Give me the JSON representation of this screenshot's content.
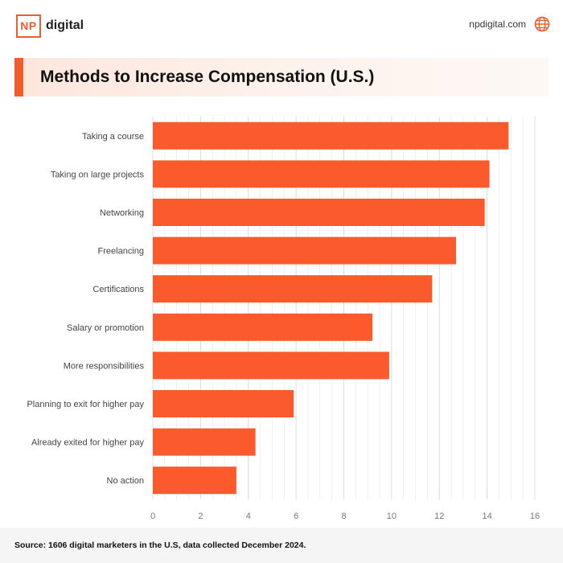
{
  "header": {
    "logo_mark": "NP",
    "logo_text": "digital",
    "site": "npdigital.com",
    "site_icon": "globe-icon"
  },
  "title": "Methods to Increase Compensation (U.S.)",
  "source": "Source: 1606 digital marketers in the U.S, data collected December 2024.",
  "colors": {
    "accent": "#f25c2a",
    "bar": "#fb5a2c",
    "grid": "#e6e6e6"
  },
  "chart_data": {
    "type": "bar",
    "orientation": "horizontal",
    "title": "Methods to Increase Compensation (U.S.)",
    "xlabel": "",
    "ylabel": "",
    "xlim": [
      0,
      16
    ],
    "x_ticks": [
      0,
      2,
      4,
      6,
      8,
      10,
      12,
      14,
      16
    ],
    "grid": true,
    "legend": "none",
    "categories": [
      "Taking a course",
      "Taking on large projects",
      "Networking",
      "Freelancing",
      "Certifications",
      "Salary or promotion",
      "More responsibilities",
      "Planning to exit for higher pay",
      "Already exited for higher pay",
      "No action"
    ],
    "values": [
      14.9,
      14.1,
      13.9,
      12.7,
      11.7,
      9.2,
      9.9,
      5.9,
      4.3,
      3.5
    ]
  }
}
